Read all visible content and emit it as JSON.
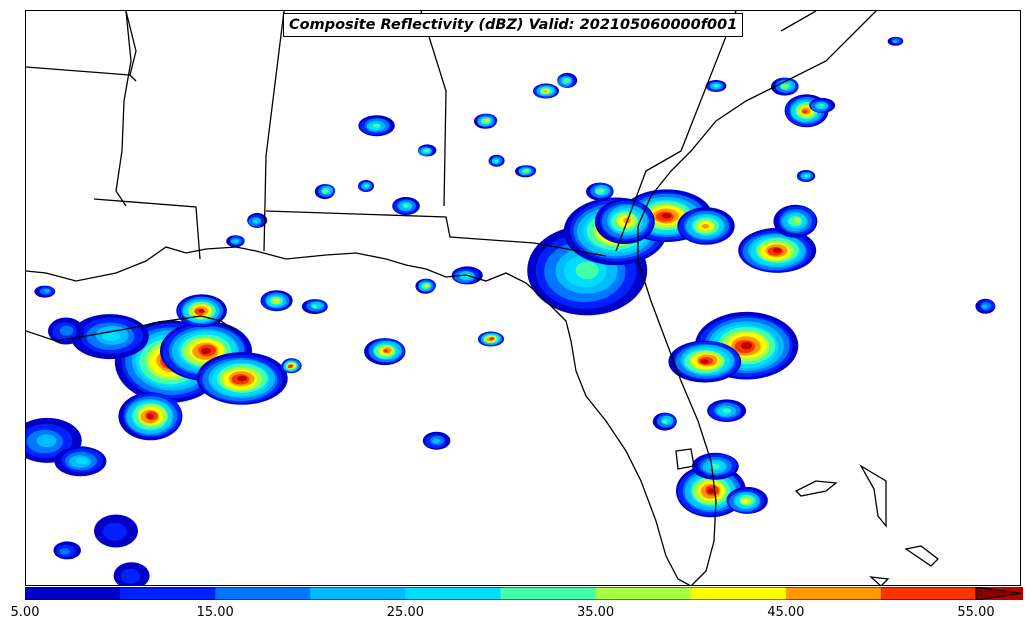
{
  "map": {
    "title": "Composite Reflectivity (dBZ) Valid: 202105060000f001"
  },
  "colorbar": {
    "levels": [
      5,
      10,
      15,
      20,
      25,
      30,
      35,
      40,
      45,
      50,
      55
    ],
    "colors": [
      "#0000c8",
      "#0022ff",
      "#0077ff",
      "#00bbff",
      "#00ddff",
      "#44ffaa",
      "#aaff44",
      "#ffff00",
      "#ff9900",
      "#ff3300",
      "#bb0000"
    ],
    "extend_color": "#880000",
    "tick_labels": [
      "5.00",
      "15.00",
      "25.00",
      "35.00",
      "45.00",
      "55.00"
    ]
  }
}
